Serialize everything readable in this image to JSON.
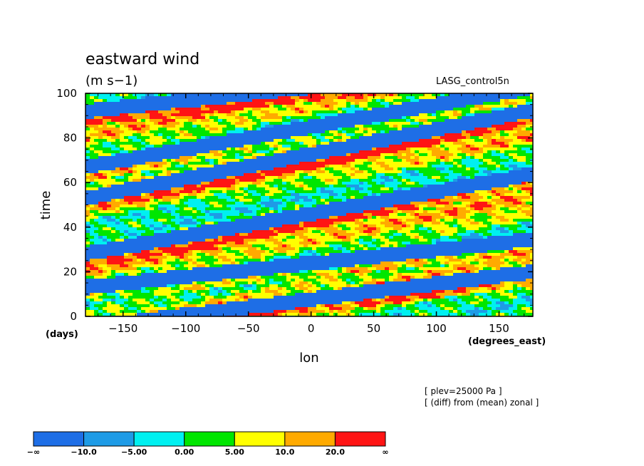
{
  "chart_data": {
    "type": "heatmap",
    "title": "eastward wind",
    "units": "(m s−1)",
    "run_name": "LASG_control5n",
    "xlabel": "lon",
    "x_units": "(degrees_east)",
    "ylabel": "time",
    "y_units": "(days)",
    "xlim": [
      -180,
      177
    ],
    "ylim": [
      0,
      100
    ],
    "x_ticks": [
      -150,
      -100,
      -50,
      0,
      50,
      100,
      150
    ],
    "x_tick_labels": [
      "−150",
      "−100",
      "−50",
      "0",
      "50",
      "100",
      "150"
    ],
    "y_ticks": [
      0,
      20,
      40,
      60,
      80,
      100
    ],
    "y_tick_labels": [
      "0",
      "20",
      "40",
      "60",
      "80",
      "100"
    ],
    "notes": [
      "[ plev=25000 Pa ]",
      "[ (diff) from (mean) zonal ]"
    ],
    "colorbar": {
      "labels": [
        "−∞",
        "−10.0",
        "−5.00",
        "0.00",
        "5.00",
        "10.0",
        "20.0",
        "∞"
      ],
      "colors": [
        "#1e6ee6",
        "#1e9be6",
        "#00f0f0",
        "#00e600",
        "#ffff00",
        "#ffaa00",
        "#ff1414"
      ]
    },
    "wave_bands": [
      {
        "lon_start": -180,
        "time_start": 92,
        "slope": 0.06
      },
      {
        "lon_start": -180,
        "time_start": 67,
        "slope": 0.1
      },
      {
        "lon_start": -180,
        "time_start": 53,
        "slope": 0.11
      },
      {
        "lon_start": -180,
        "time_start": 28,
        "slope": 0.1
      },
      {
        "lon_start": -180,
        "time_start": 13,
        "slope": 0.06
      },
      {
        "lon_start": -180,
        "time_start": -5,
        "slope": 0.07
      }
    ]
  }
}
